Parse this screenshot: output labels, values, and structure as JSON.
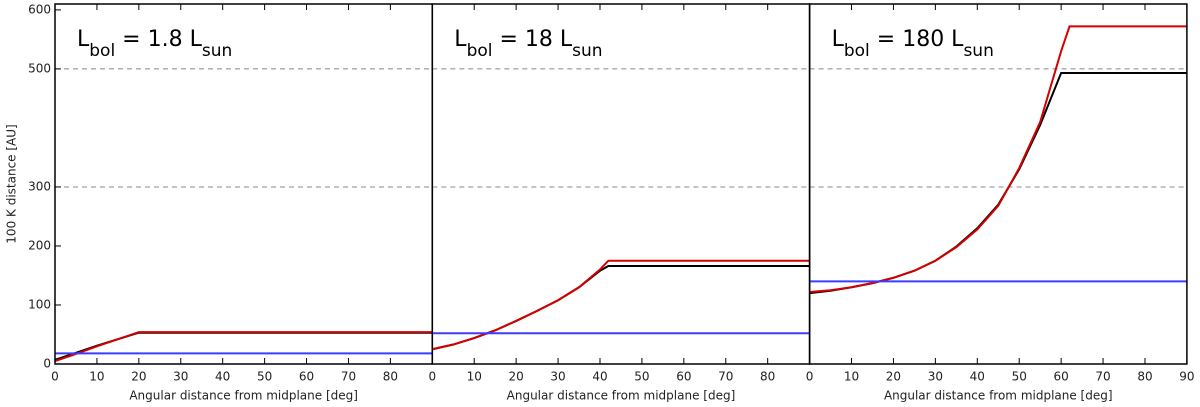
{
  "chart_data": [
    {
      "type": "line",
      "title": [
        "L",
        "bol",
        " = 1.8 L",
        "sun"
      ],
      "xlabel": "Angular distance from midplane [deg]",
      "ylabel": "100 K distance [AU]",
      "x": [
        0,
        5,
        10,
        15,
        20,
        25,
        30,
        35,
        40,
        45,
        50,
        55,
        60,
        65,
        70,
        75,
        80,
        85,
        90
      ],
      "series": [
        {
          "color": "#000000",
          "values": [
            7,
            19,
            31,
            42,
            53,
            53,
            53,
            53,
            53,
            53,
            53,
            53,
            53,
            53,
            53,
            53,
            53,
            53,
            53
          ]
        },
        {
          "color": "#d40000",
          "values": [
            5,
            17,
            30,
            42,
            54,
            54,
            54,
            54,
            54,
            54,
            54,
            54,
            54,
            54,
            54,
            54,
            54,
            54,
            54
          ]
        },
        {
          "color": "#3c3cff",
          "values": [
            18,
            18,
            18,
            18,
            18,
            18,
            18,
            18,
            18,
            18,
            18,
            18,
            18,
            18,
            18,
            18,
            18,
            18,
            18
          ]
        }
      ],
      "xlim": [
        0,
        90
      ],
      "ylim": [
        0,
        610
      ],
      "xticks": [
        0,
        10,
        20,
        30,
        40,
        50,
        60,
        70,
        80
      ],
      "yticks": [
        0,
        100,
        200,
        300,
        500,
        600
      ],
      "reference_lines": [
        300,
        500
      ]
    },
    {
      "type": "line",
      "title": [
        "L",
        "bol",
        " = 18 L",
        "sun"
      ],
      "xlabel": "Angular distance from midplane [deg]",
      "x": [
        0,
        5,
        10,
        15,
        20,
        25,
        30,
        35,
        40,
        42,
        45,
        50,
        55,
        60,
        65,
        70,
        75,
        80,
        85,
        90
      ],
      "series": [
        {
          "color": "#000000",
          "values": [
            25,
            33,
            44,
            57,
            73,
            90,
            108,
            130,
            158,
            166,
            166,
            166,
            166,
            166,
            166,
            166,
            166,
            166,
            166,
            166
          ]
        },
        {
          "color": "#d40000",
          "values": [
            25,
            33,
            44,
            57,
            73,
            90,
            108,
            130,
            160,
            175,
            175,
            175,
            175,
            175,
            175,
            175,
            175,
            175,
            175,
            175
          ]
        },
        {
          "color": "#3c3cff",
          "values": [
            52,
            52,
            52,
            52,
            52,
            52,
            52,
            52,
            52,
            52,
            52,
            52,
            52,
            52,
            52,
            52,
            52,
            52,
            52,
            52
          ]
        }
      ],
      "xlim": [
        0,
        90
      ],
      "ylim": [
        0,
        610
      ],
      "xticks": [
        0,
        10,
        20,
        30,
        40,
        50,
        60,
        70,
        80
      ],
      "reference_lines": [
        300,
        500
      ]
    },
    {
      "type": "line",
      "title": [
        "L",
        "bol",
        " = 180 L",
        "sun"
      ],
      "xlabel": "Angular distance from midplane [deg]",
      "x": [
        0,
        5,
        10,
        15,
        20,
        25,
        30,
        35,
        40,
        45,
        50,
        55,
        60,
        62,
        65,
        70,
        75,
        80,
        85,
        90
      ],
      "series": [
        {
          "color": "#000000",
          "values": [
            120,
            124,
            130,
            137,
            146,
            158,
            175,
            199,
            230,
            270,
            330,
            405,
            493,
            493,
            493,
            493,
            493,
            493,
            493,
            493
          ]
        },
        {
          "color": "#d40000",
          "values": [
            122,
            125,
            130,
            137,
            146,
            158,
            175,
            198,
            228,
            268,
            332,
            410,
            530,
            572,
            572,
            572,
            572,
            572,
            572,
            572
          ]
        },
        {
          "color": "#3c3cff",
          "values": [
            140,
            140,
            140,
            140,
            140,
            140,
            140,
            140,
            140,
            140,
            140,
            140,
            140,
            140,
            140,
            140,
            140,
            140,
            140,
            140
          ]
        }
      ],
      "xlim": [
        0,
        90
      ],
      "ylim": [
        0,
        610
      ],
      "xticks": [
        0,
        10,
        20,
        30,
        40,
        50,
        60,
        70,
        80,
        90
      ],
      "reference_lines": [
        300,
        500
      ]
    }
  ]
}
